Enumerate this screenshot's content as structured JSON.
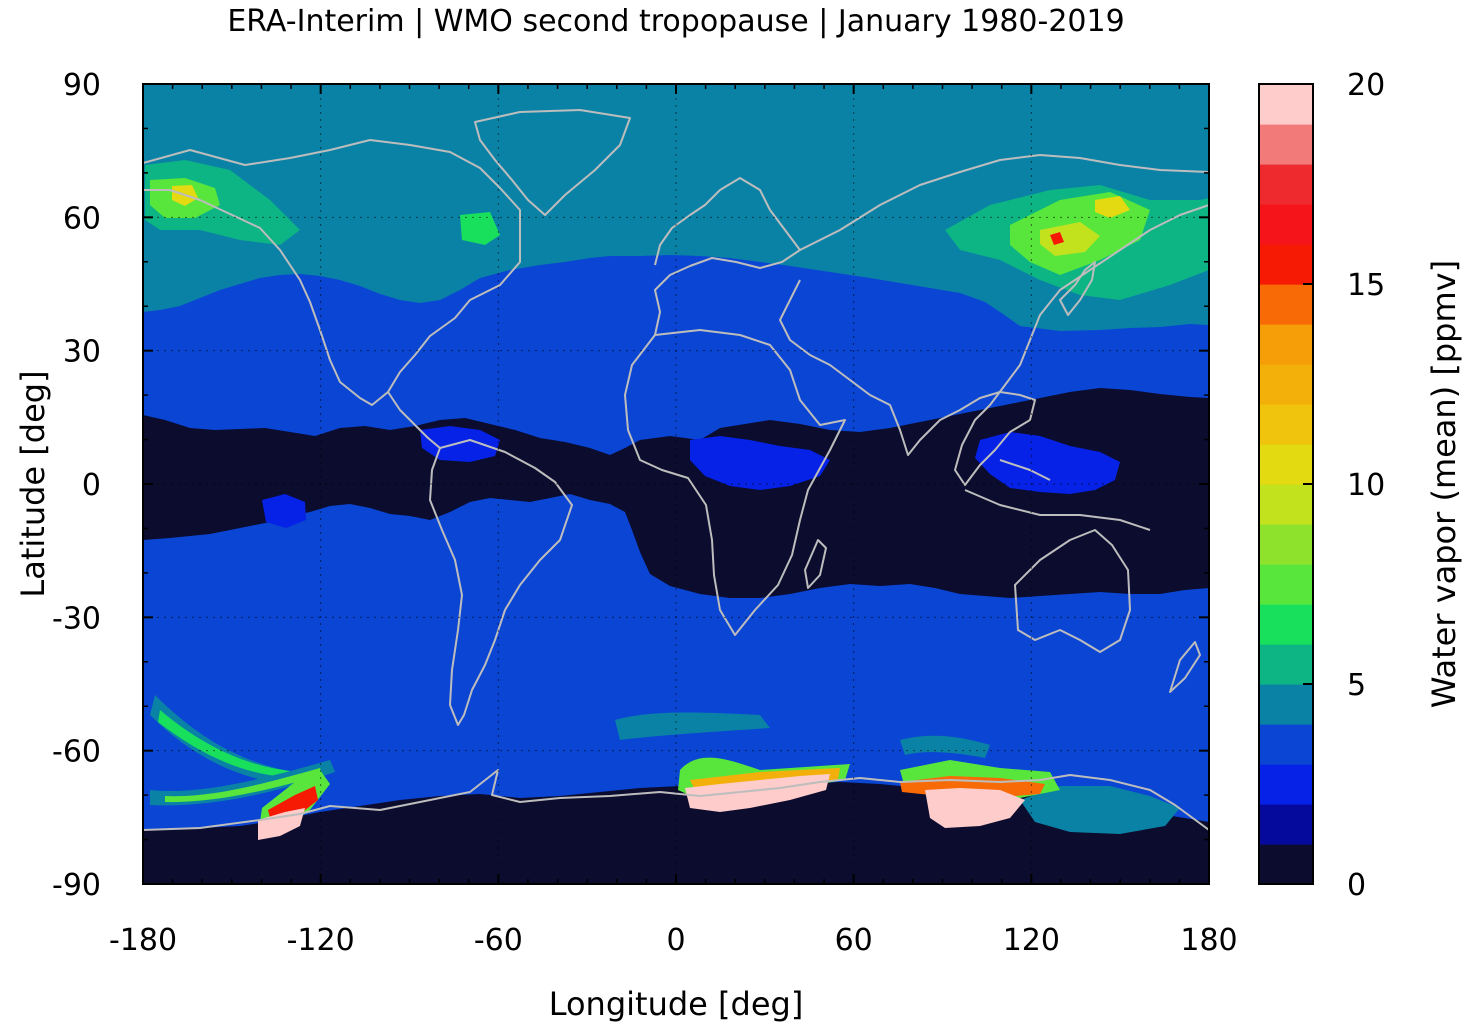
{
  "chart_data": {
    "type": "heatmap",
    "title": "ERA-Interim | WMO second tropopause | January 1980-2019",
    "xlabel": "Longitude [deg]",
    "ylabel": "Latitude [deg]",
    "xlim": [
      -180,
      180
    ],
    "ylim": [
      -90,
      90
    ],
    "xticks": [
      -180,
      -120,
      -60,
      0,
      60,
      120,
      180
    ],
    "yticks": [
      90,
      60,
      30,
      0,
      -30,
      -60,
      -90
    ],
    "xtick_labels": [
      "-180",
      "-120",
      "-60",
      "0",
      "60",
      "120",
      "180"
    ],
    "ytick_labels": [
      "90",
      "60",
      "30",
      "0",
      "-30",
      "-60",
      "-90"
    ],
    "grid": true,
    "colorbar": {
      "label": "Water vapor (mean) [ppmv]",
      "range": [
        0,
        20
      ],
      "ticks": [
        0,
        5,
        10,
        15,
        20
      ],
      "tick_labels": [
        "0",
        "5",
        "10",
        "15",
        "20"
      ],
      "levels": [
        {
          "from": 0,
          "to": 1,
          "color": "#0b0c2e"
        },
        {
          "from": 1,
          "to": 2,
          "color": "#050a9c"
        },
        {
          "from": 2,
          "to": 3,
          "color": "#0622e6"
        },
        {
          "from": 3,
          "to": 4,
          "color": "#0a45d4"
        },
        {
          "from": 4,
          "to": 5,
          "color": "#0a82a6"
        },
        {
          "from": 5,
          "to": 6,
          "color": "#0db484"
        },
        {
          "from": 6,
          "to": 7,
          "color": "#19e05c"
        },
        {
          "from": 7,
          "to": 8,
          "color": "#58e63c"
        },
        {
          "from": 8,
          "to": 9,
          "color": "#8fe22c"
        },
        {
          "from": 9,
          "to": 10,
          "color": "#c2e21e"
        },
        {
          "from": 10,
          "to": 11,
          "color": "#e3da12"
        },
        {
          "from": 11,
          "to": 12,
          "color": "#f0c40c"
        },
        {
          "from": 12,
          "to": 13,
          "color": "#f4b00a"
        },
        {
          "from": 13,
          "to": 14,
          "color": "#f69e08"
        },
        {
          "from": 14,
          "to": 15,
          "color": "#f76a06"
        },
        {
          "from": 15,
          "to": 16,
          "color": "#f61a04"
        },
        {
          "from": 16,
          "to": 17,
          "color": "#f4141a"
        },
        {
          "from": 17,
          "to": 18,
          "color": "#ee2a2e"
        },
        {
          "from": 18,
          "to": 19,
          "color": "#f27b79"
        },
        {
          "from": 19,
          "to": 20,
          "color": "#fecccb"
        }
      ]
    },
    "regions": [
      {
        "lat_band": [
          -90,
          -70
        ],
        "value": 0.5
      },
      {
        "lat_band": [
          -25,
          12
        ],
        "value": 0.5
      },
      {
        "lat_band": [
          -70,
          35
        ],
        "value": 3.5
      },
      {
        "lat_band": [
          35,
          90
        ],
        "value": 4.5
      }
    ],
    "hotspots": [
      {
        "lon": 30,
        "lat": -72,
        "value": 19.5
      },
      {
        "lon": 95,
        "lat": -73,
        "value": 19.5
      },
      {
        "lon": -135,
        "lat": -75,
        "value": 19.5
      },
      {
        "lon": 125,
        "lat": 57,
        "value": 9
      },
      {
        "lon": -170,
        "lat": 63,
        "value": 8
      }
    ]
  }
}
